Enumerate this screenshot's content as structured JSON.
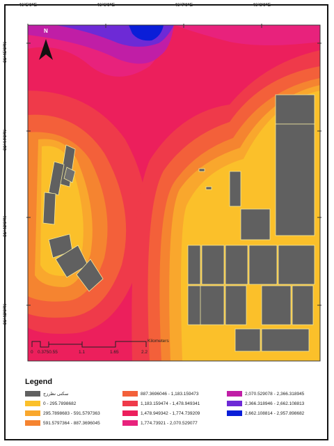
{
  "map": {
    "coords_top": [
      "46°5'0\"E",
      "46°6'0\"E",
      "46°7'0\"E",
      "46°8'0\"E"
    ],
    "coords_left": [
      "31°45'0\"N",
      "31°44'0\"N",
      "31°43'0\"N",
      "31°42'0\"N"
    ],
    "north_label": "N",
    "scale": {
      "unit": "Kilometers",
      "ticks": [
        "0",
        "0.3750.55",
        "1.1",
        "1.65",
        "2.2"
      ]
    }
  },
  "legend": {
    "title": "Legend",
    "items": [
      {
        "label": "سکنی نظرزج",
        "color": "#606060"
      },
      {
        "label": "0 - 295.7898682",
        "color": "#fbc02a"
      },
      {
        "label": "295.7898683 - 591.5797363",
        "color": "#f9a72d"
      },
      {
        "label": "591.5797364 - 887.3696045",
        "color": "#f58430"
      },
      {
        "label": "887.3696046 - 1,183.159473",
        "color": "#f3603a"
      },
      {
        "label": "1,183.159474 - 1,478.949341",
        "color": "#ef3a4a"
      },
      {
        "label": "1,478.949342 - 1,774.739209",
        "color": "#ec1f5c"
      },
      {
        "label": "1,774.73921 - 2,070.529077",
        "color": "#e8227c"
      },
      {
        "label": "2,070.529078 - 2,366.318945",
        "color": "#c01ea6"
      },
      {
        "label": "2,366.318946 - 2,662.108813",
        "color": "#6d2ad6"
      },
      {
        "label": "2,662.108814 - 2,957.898682",
        "color": "#0a1ed8"
      }
    ]
  }
}
